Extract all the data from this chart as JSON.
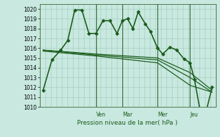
{
  "xlabel": "Pression niveau de la mer( hPa )",
  "ylim": [
    1010,
    1020.5
  ],
  "yticks": [
    1010,
    1011,
    1012,
    1013,
    1014,
    1015,
    1016,
    1017,
    1018,
    1019,
    1020
  ],
  "bg_color": "#c8e8e0",
  "grid_color": "#a0c8b8",
  "line_color": "#1a5c1a",
  "vline_color": "#336633",
  "vlines_x": [
    0.32,
    0.47,
    0.67,
    0.855
  ],
  "vline_labels": [
    "Ven",
    "Mar",
    "Mer",
    "Jeu"
  ],
  "series": [
    {
      "x": [
        0.02,
        0.07,
        0.12,
        0.16,
        0.2,
        0.24,
        0.28,
        0.32,
        0.36,
        0.4,
        0.44,
        0.47,
        0.5,
        0.53,
        0.56,
        0.6,
        0.63,
        0.67,
        0.7,
        0.74,
        0.78,
        0.82,
        0.855,
        0.88,
        0.91,
        0.95,
        0.98
      ],
      "y": [
        1011.7,
        1014.8,
        1015.8,
        1016.8,
        1019.9,
        1019.9,
        1017.5,
        1017.5,
        1018.8,
        1018.8,
        1017.5,
        1018.8,
        1019.0,
        1018.0,
        1019.7,
        1018.5,
        1017.7,
        1016.0,
        1015.4,
        1016.1,
        1015.8,
        1014.9,
        1014.5,
        1012.8,
        1009.8,
        1009.8,
        1012.0
      ],
      "marker": "D",
      "linewidth": 1.2,
      "markersize": 2.5
    },
    {
      "x": [
        0.02,
        0.32,
        0.67,
        0.855,
        0.98
      ],
      "y": [
        1015.8,
        1015.4,
        1015.0,
        1013.5,
        1011.7
      ],
      "marker": null,
      "linewidth": 0.9
    },
    {
      "x": [
        0.02,
        0.32,
        0.67,
        0.855,
        0.98
      ],
      "y": [
        1015.8,
        1015.3,
        1014.8,
        1013.0,
        1011.5
      ],
      "marker": null,
      "linewidth": 0.9
    },
    {
      "x": [
        0.02,
        0.32,
        0.67,
        0.855,
        0.98
      ],
      "y": [
        1015.7,
        1015.2,
        1014.5,
        1012.2,
        1011.5
      ],
      "marker": null,
      "linewidth": 0.9
    }
  ]
}
